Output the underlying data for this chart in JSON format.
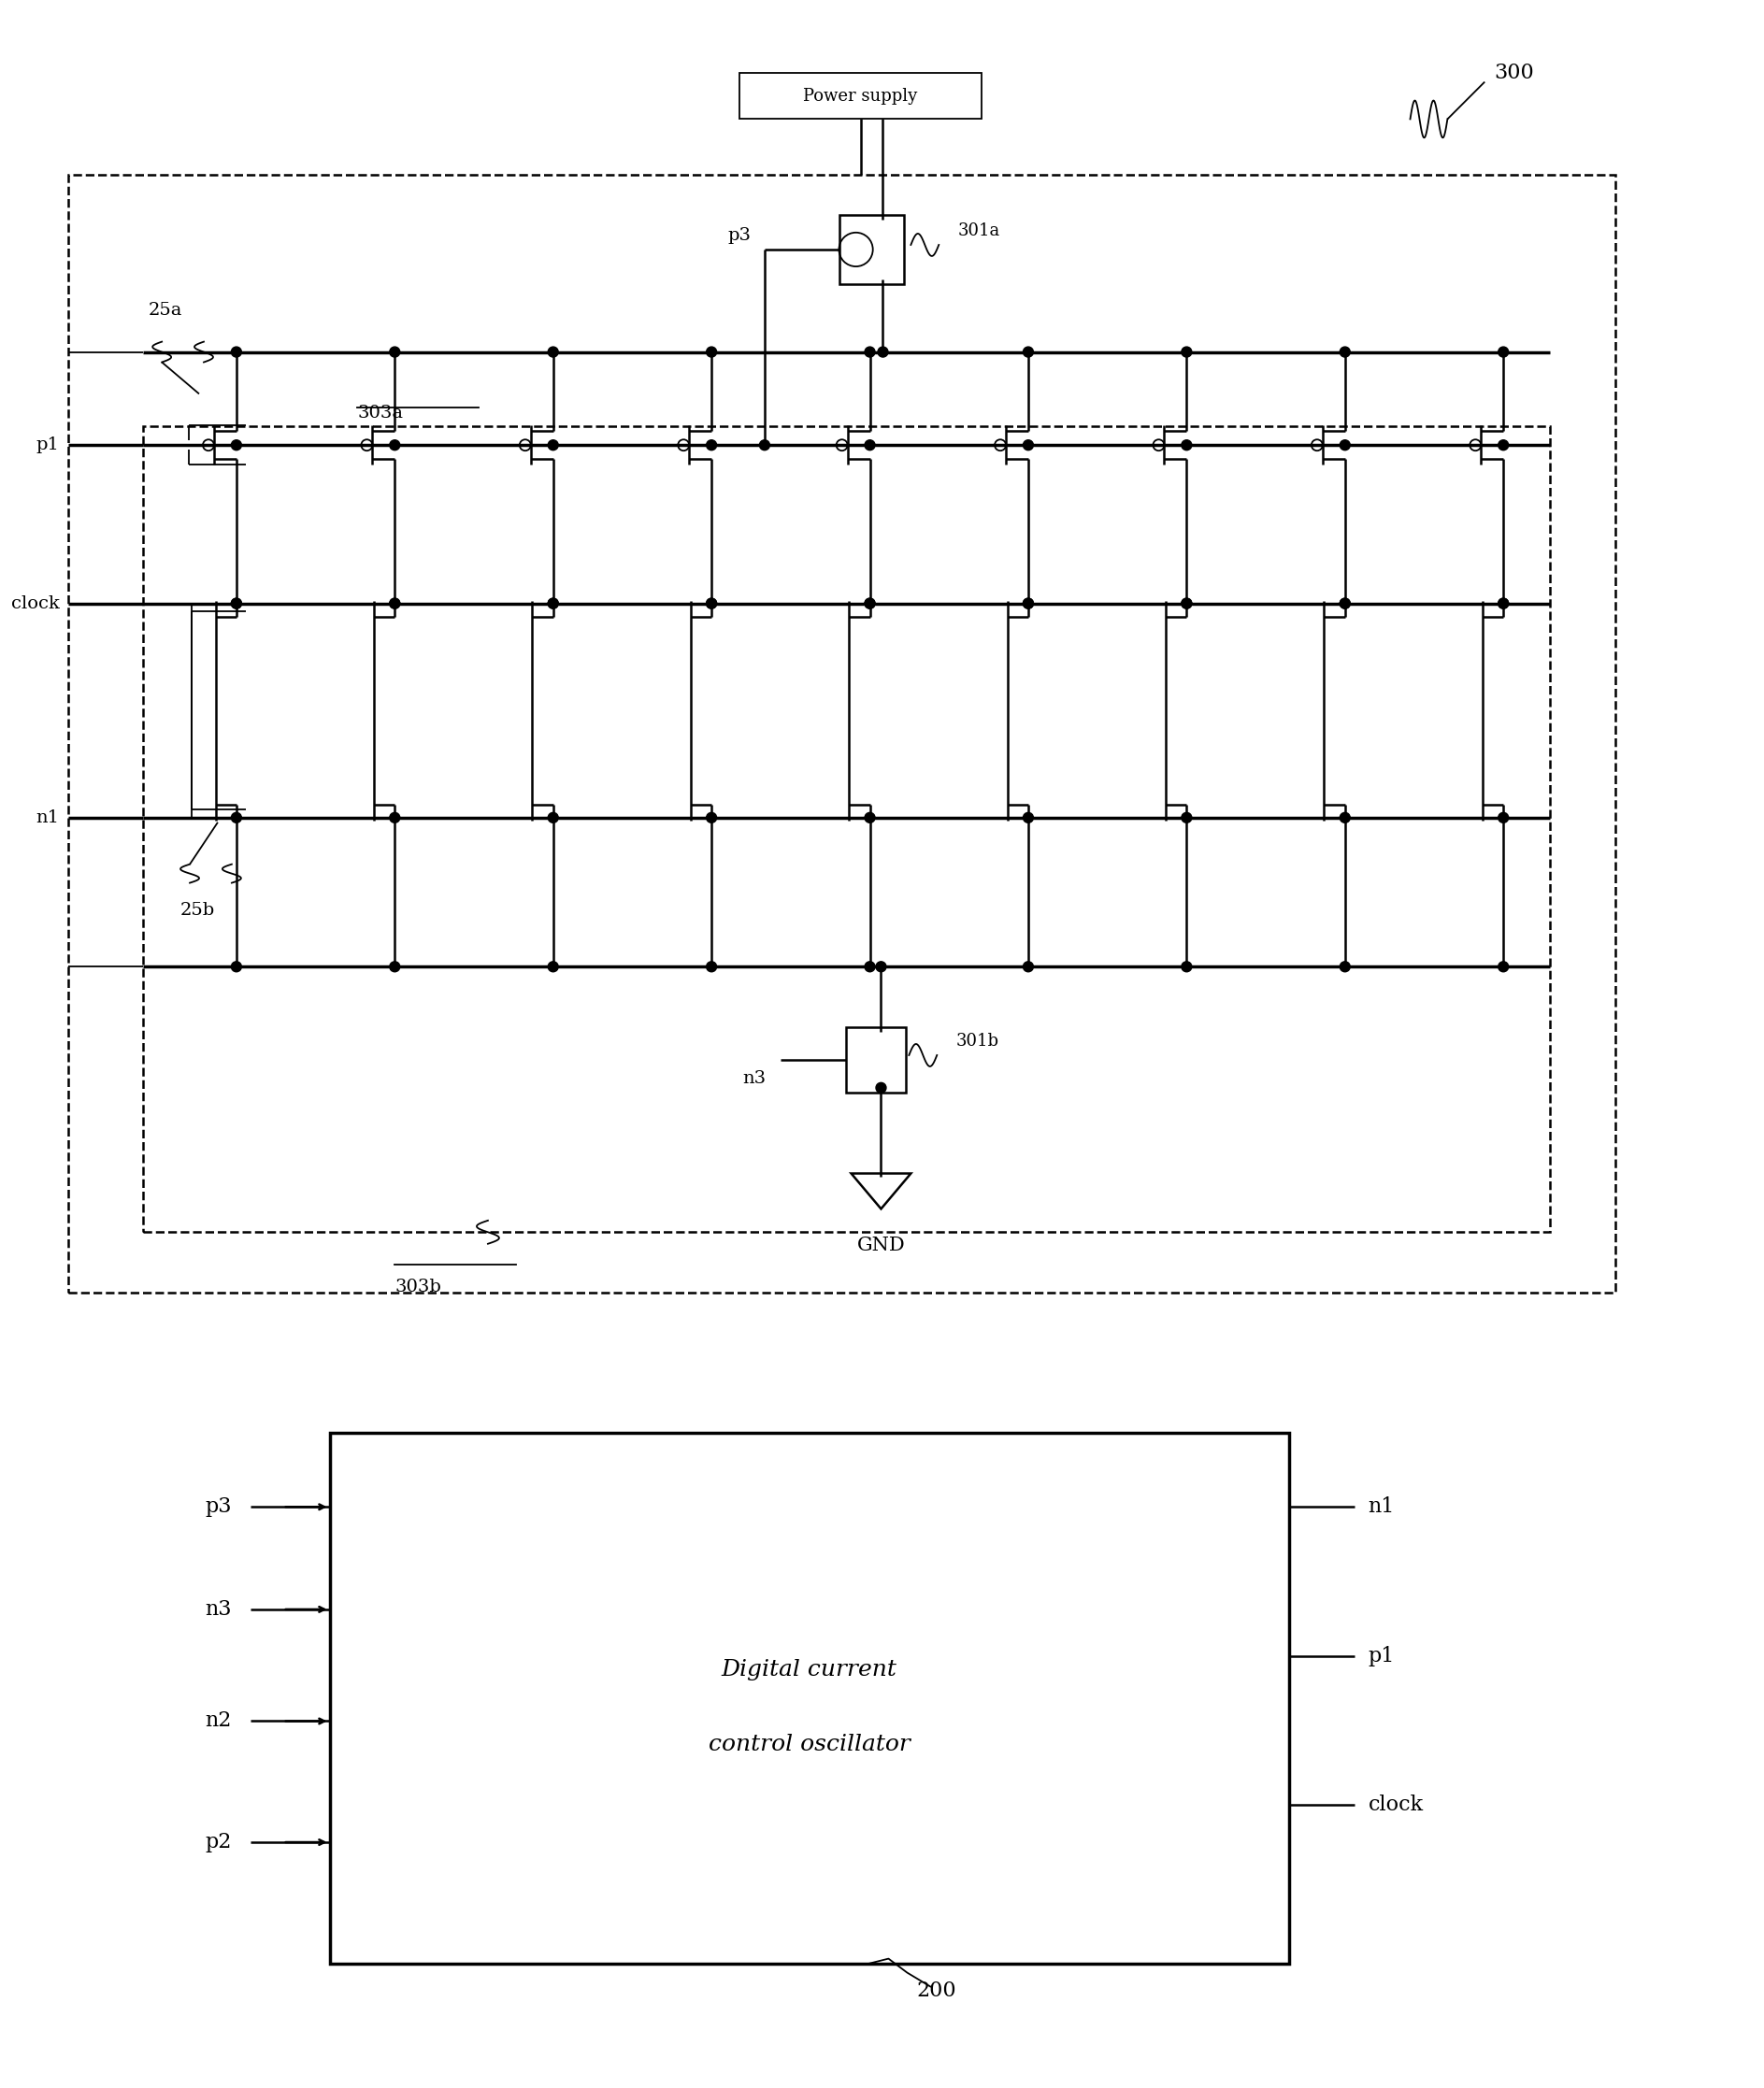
{
  "bg_color": "#ffffff",
  "fig_width": 18.87,
  "fig_height": 22.34,
  "label_300": "300",
  "label_200": "200",
  "label_GND": "GND",
  "label_power": "Power supply",
  "label_303a": "303a",
  "label_303b": "303b",
  "label_25a": "25a",
  "label_25b": "25b",
  "label_p3": "p3",
  "label_n3": "n3",
  "label_301a": "301a",
  "label_301b": "301b",
  "label_p1": "p1",
  "label_n1": "n1",
  "label_clock": "clock",
  "inputs_left": [
    "p3",
    "n3",
    "n2",
    "p2"
  ],
  "outputs_right": [
    "n1",
    "p1",
    "clock"
  ],
  "n_cols": 9,
  "lw_thick": 2.5,
  "lw_med": 1.8,
  "lw_thin": 1.3,
  "dot_r": 0.055
}
